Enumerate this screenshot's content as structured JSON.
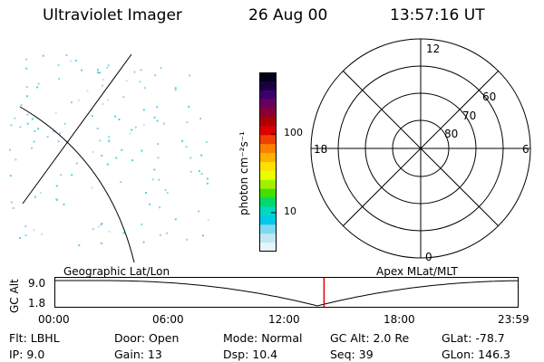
{
  "header": {
    "title": "Ultraviolet Imager",
    "date": "26 Aug 00",
    "time": "13:57:16 UT"
  },
  "colorbar": {
    "unit": "photon cm⁻²s⁻¹",
    "ticks": [
      "100",
      "10"
    ],
    "colors": [
      "#000018",
      "#1a0040",
      "#3c006a",
      "#6a005e",
      "#8a0030",
      "#b00000",
      "#dc0000",
      "#f04000",
      "#ff8000",
      "#ffb000",
      "#ffe000",
      "#e8ff00",
      "#a0f000",
      "#40e000",
      "#00d870",
      "#00d8c0",
      "#00c8e8",
      "#80d8f0",
      "#c0e8f4",
      "#e8f4f8"
    ]
  },
  "polar": {
    "mlt_labels": {
      "top": "12",
      "left": "18",
      "right": "6",
      "bottom": "0"
    },
    "lat_labels": [
      "60",
      "70",
      "80"
    ]
  },
  "timeline": {
    "axis_label": "GC Alt",
    "y_max": "9.0",
    "y_min": "1.8",
    "left_title": "Geographic Lat/Lon",
    "right_title": "Apex MLat/MLT",
    "time_ticks": [
      "00:00",
      "06:00",
      "12:00",
      "18:00",
      "23:59"
    ],
    "marker_time": "13:57",
    "marker_color": "#e00000"
  },
  "footer": {
    "flt": "Flt: LBHL",
    "ip": "IP:  9.0",
    "door": "Door: Open",
    "gain": "Gain: 13",
    "mode": "Mode: Normal",
    "dsp": "Dsp:    10.4",
    "gcalt": "GC Alt: 2.0 Re",
    "seq": "Seq: 39",
    "glat": "GLat: -78.7",
    "glon": "GLon: 146.3"
  }
}
